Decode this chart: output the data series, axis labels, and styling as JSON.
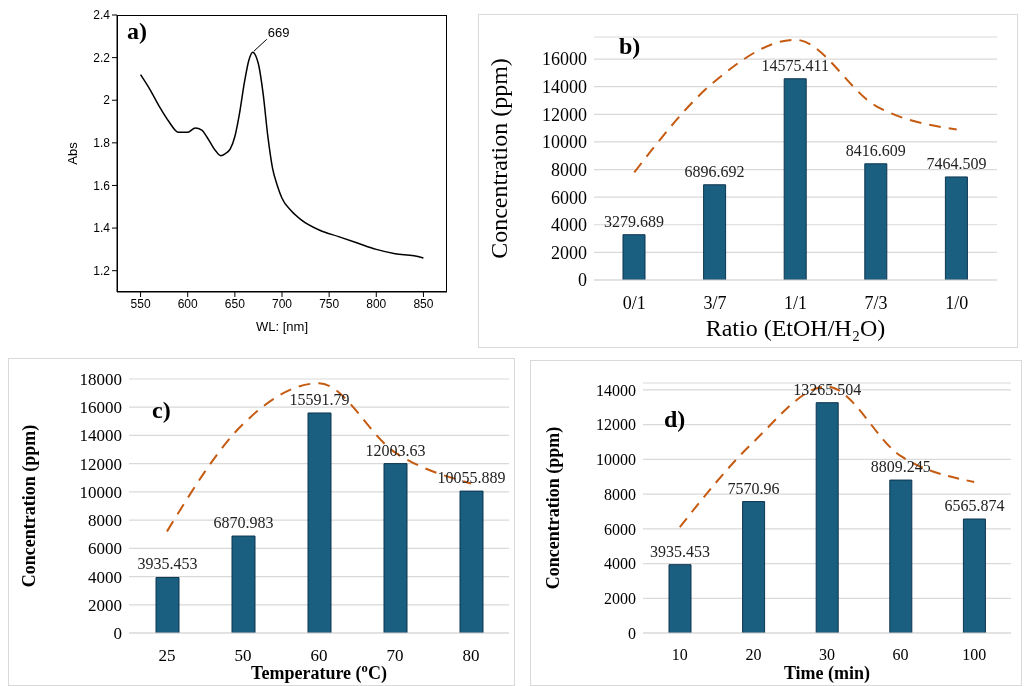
{
  "chart_data": [
    {
      "type": "line",
      "xlabel": "WL: [nm]",
      "ylabel": "Abs",
      "annotations": [
        "a)",
        {
          "text": "669",
          "x": 669,
          "y": 2.225
        }
      ],
      "xlim": [
        525,
        875
      ],
      "xticks": [
        550,
        600,
        650,
        700,
        750,
        800,
        850
      ],
      "ylim": [
        1.1,
        2.4
      ],
      "yticks": [
        1.2,
        1.4,
        1.6,
        1.8,
        2.0,
        2.2,
        2.4
      ],
      "grid": false,
      "marker": "none",
      "x": [
        550,
        560,
        570,
        580,
        590,
        600,
        608,
        615,
        620,
        630,
        635,
        640,
        645,
        650,
        655,
        660,
        665,
        669,
        672,
        675,
        680,
        685,
        690,
        695,
        700,
        710,
        720,
        740,
        760,
        780,
        800,
        820,
        840,
        850
      ],
      "series": [
        {
          "color": "#000000",
          "values": [
            2.12,
            2.05,
            1.97,
            1.9,
            1.85,
            1.85,
            1.87,
            1.86,
            1.83,
            1.76,
            1.74,
            1.75,
            1.77,
            1.83,
            1.94,
            2.08,
            2.19,
            2.225,
            2.21,
            2.17,
            2.03,
            1.83,
            1.68,
            1.6,
            1.54,
            1.48,
            1.44,
            1.39,
            1.36,
            1.33,
            1.3,
            1.28,
            1.27,
            1.26
          ]
        }
      ]
    },
    {
      "type": "bar",
      "xlabel": "Ratio (EtOH/H₂O)",
      "ylabel": "Concentration (ppm)",
      "annotations": [
        "b)"
      ],
      "categories": [
        "0/1",
        "3/7",
        "1/1",
        "7/3",
        "1/0"
      ],
      "ylim": [
        0,
        17600
      ],
      "yticks": [
        0,
        2000,
        4000,
        6000,
        8000,
        10000,
        12000,
        14000,
        16000
      ],
      "grid": "y",
      "series": [
        {
          "color": "#1a5e80",
          "values": [
            3279.689,
            6896.692,
            14575.411,
            8416.609,
            7464.509
          ],
          "value_labels": [
            "3279.689",
            "6896.692",
            "14575.411",
            "8416.609",
            "7464.509"
          ]
        },
        {
          "type": "line",
          "color": "#c55a11",
          "line_style": "dashed",
          "values": [
            7800,
            14400,
            17400,
            12600,
            10900
          ]
        }
      ]
    },
    {
      "type": "bar",
      "xlabel": "Temperature ($^{o}$C)",
      "ylabel": "Concentration (ppm)",
      "annotations": [
        "c)"
      ],
      "categories": [
        "25",
        "50",
        "60",
        "70",
        "80"
      ],
      "ylim": [
        0,
        18000
      ],
      "yticks": [
        0,
        2000,
        4000,
        6000,
        8000,
        10000,
        12000,
        14000,
        16000,
        18000
      ],
      "grid": "y",
      "series": [
        {
          "color": "#1a5e80",
          "values": [
            3935.453,
            6870.983,
            15591.79,
            12003.63,
            10055.889
          ],
          "value_labels": [
            "3935.453",
            "6870.983",
            "15591.79",
            "12003.63",
            "10055.889"
          ]
        },
        {
          "type": "line",
          "color": "#c55a11",
          "line_style": "dashed",
          "values": [
            7200,
            14800,
            17700,
            12800,
            10600
          ]
        }
      ]
    },
    {
      "type": "bar",
      "xlabel": "Time (min)",
      "ylabel": "Concentration (ppm)",
      "annotations": [
        "d)"
      ],
      "categories": [
        "10",
        "20",
        "30",
        "60",
        "100"
      ],
      "ylim": [
        0,
        14400
      ],
      "yticks": [
        0,
        2000,
        4000,
        6000,
        8000,
        10000,
        12000,
        14000
      ],
      "grid": "y",
      "series": [
        {
          "color": "#1a5e80",
          "values": [
            3935.453,
            7570.96,
            13265.504,
            8809.245,
            6565.874
          ],
          "value_labels": [
            "3935.453",
            "7570.96",
            "13265.504",
            "8809.245",
            "6565.874"
          ]
        },
        {
          "type": "line",
          "color": "#c55a11",
          "line_style": "dashed",
          "values": [
            6100,
            11000,
            14200,
            10200,
            8700
          ]
        }
      ]
    }
  ]
}
